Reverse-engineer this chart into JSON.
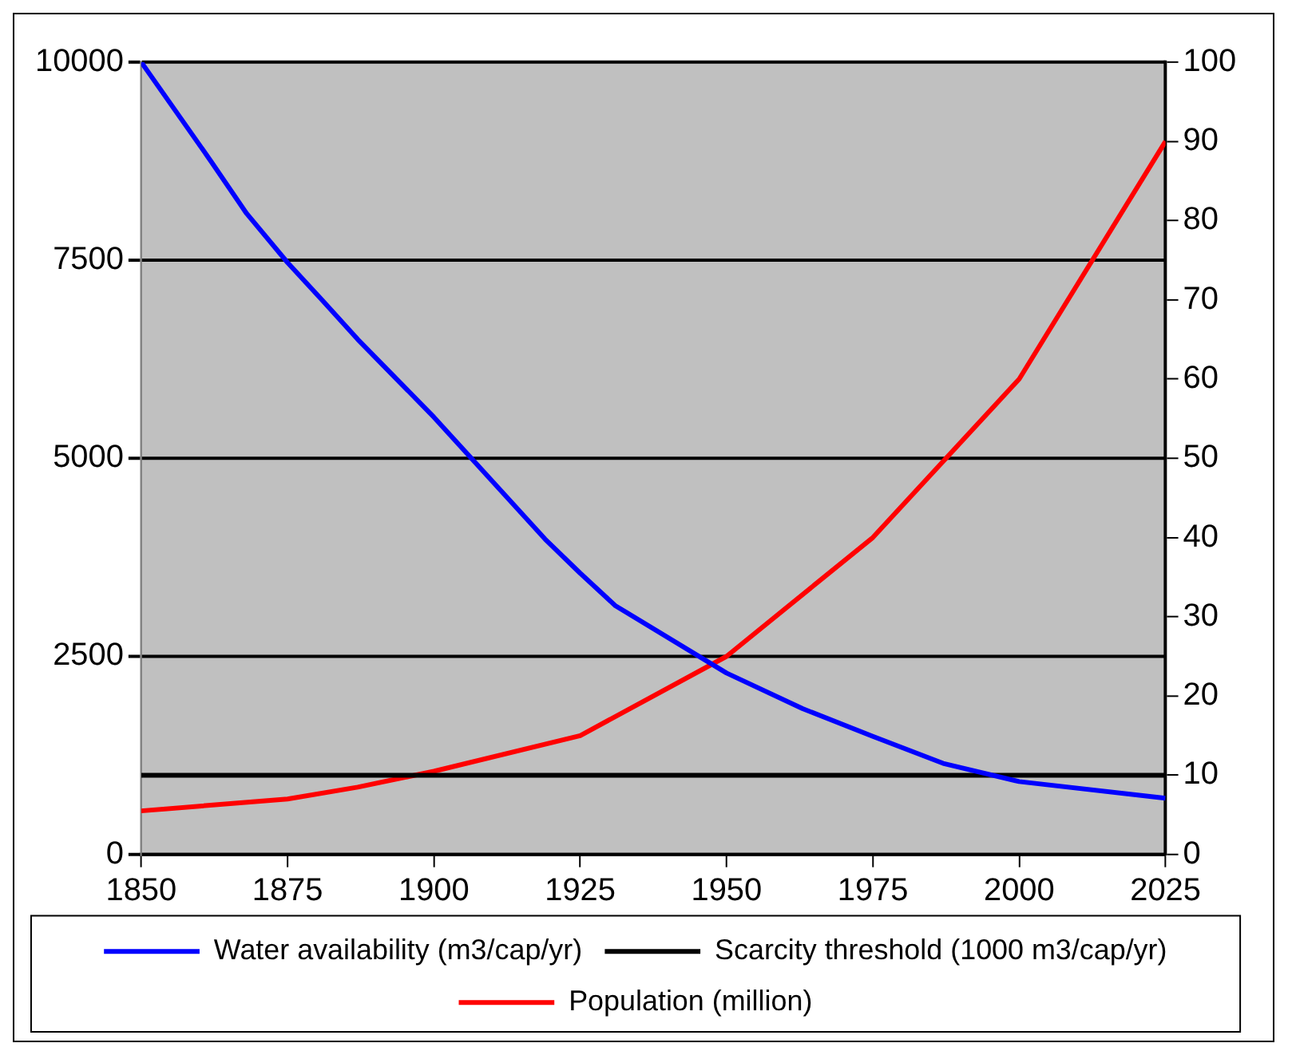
{
  "chart_data": {
    "type": "line",
    "xlim": [
      1850,
      2025
    ],
    "xticks": [
      1850,
      1875,
      1900,
      1925,
      1950,
      1975,
      2000,
      2025
    ],
    "ylim": [
      0,
      10000
    ],
    "yticks": [
      0,
      2500,
      5000,
      7500,
      10000
    ],
    "y2lim": [
      0,
      100
    ],
    "y2ticks": [
      0,
      10,
      20,
      30,
      40,
      50,
      60,
      70,
      80,
      90,
      100
    ],
    "grid": "y",
    "legend": "bottom",
    "marker": "none",
    "line_style": "solid",
    "series": [
      {
        "name": "Water availability (m3/cap/yr)",
        "color": "#0000ff",
        "x": [
          1850,
          1862,
          1868,
          1875,
          1881,
          1887,
          1900,
          1919,
          1925,
          1931,
          1950,
          1963,
          1975,
          1987,
          2000,
          2025
        ],
        "values": [
          10000,
          8740,
          8090,
          7470,
          6990,
          6500,
          5520,
          3980,
          3550,
          3140,
          2290,
          1840,
          1490,
          1150,
          920,
          710
        ]
      },
      {
        "name": "Scarcity threshold (1000 m3/cap/yr)",
        "color": "#000000",
        "x": [
          1850,
          2025
        ],
        "values": [
          1000,
          1000
        ]
      },
      {
        "name": "Population (million)",
        "color": "#ff0000",
        "axis": "y2",
        "x": [
          1850,
          1875,
          1887,
          1900,
          1925,
          1950,
          1975,
          2000,
          2025
        ],
        "values": [
          5.5,
          7,
          8.5,
          10.5,
          15,
          25,
          40,
          60,
          90
        ]
      }
    ]
  }
}
